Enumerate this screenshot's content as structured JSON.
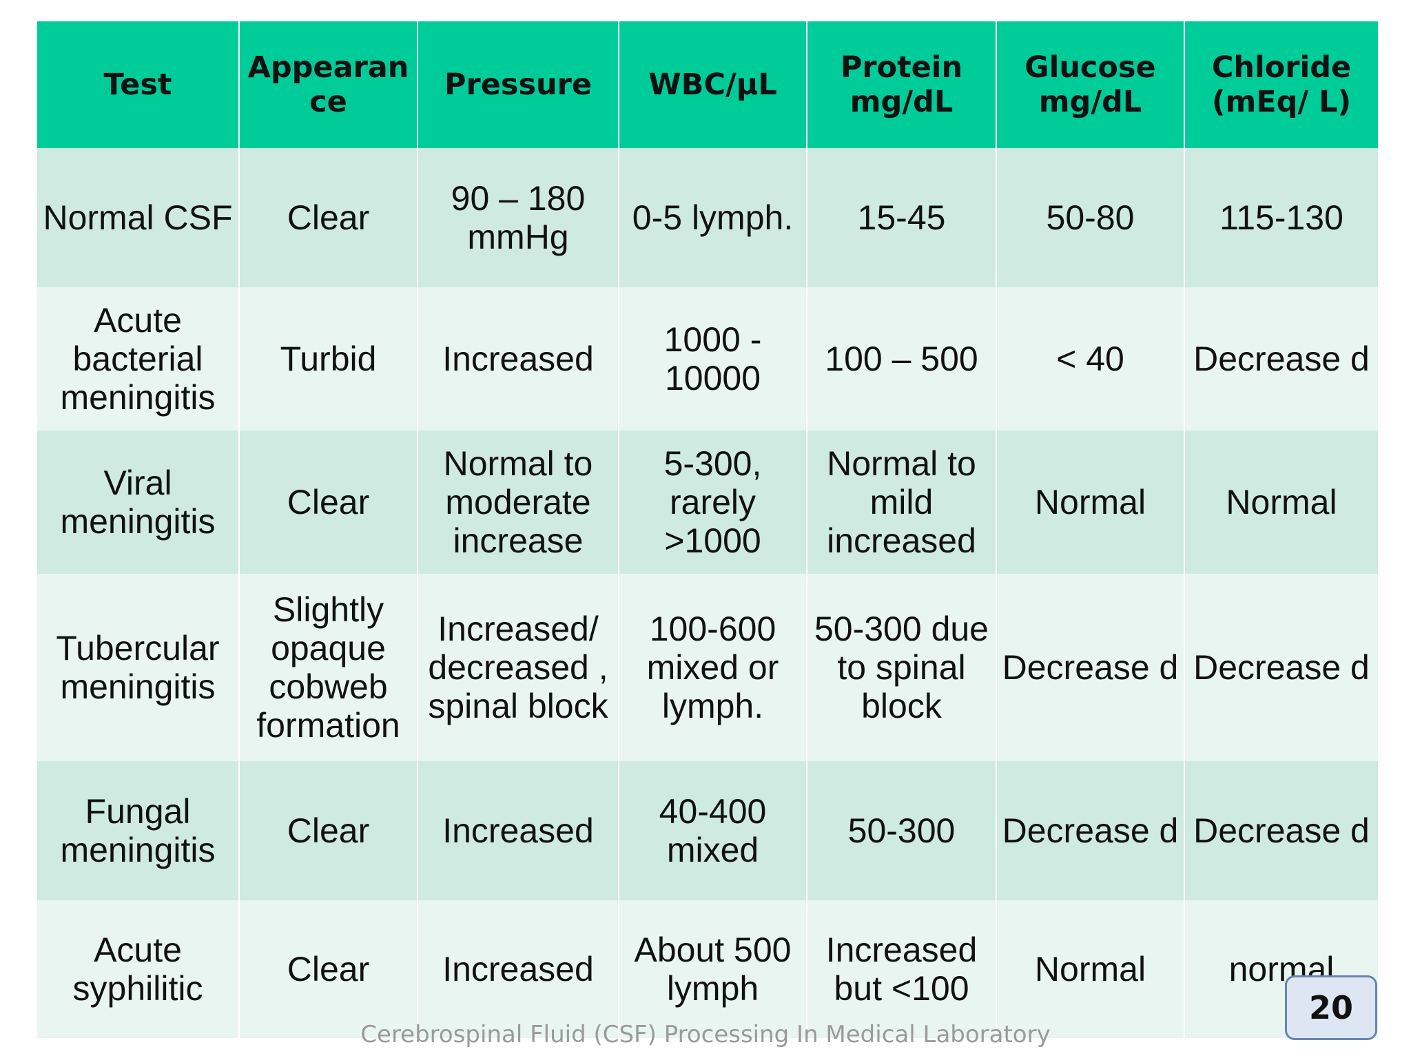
{
  "table": {
    "headers": [
      "Test",
      "Appearan ce",
      "Pressure",
      "WBC/μL",
      "Protein mg/dL",
      "Glucose mg/dL",
      "Chloride (mEq/ L)"
    ],
    "rows": [
      [
        "Normal CSF",
        "Clear",
        "90 – 180 mmHg",
        "0-5 lymph.",
        "15-45",
        "50-80",
        "115-130"
      ],
      [
        "Acute bacterial meningitis",
        "Turbid",
        "Increased",
        "1000 - 10000",
        "100 – 500",
        "< 40",
        "Decrease d"
      ],
      [
        "Viral meningitis",
        "Clear",
        "Normal to moderate increase",
        "5-300, rarely >1000",
        "Normal to mild increased",
        "Normal",
        "Normal"
      ],
      [
        "Tubercular meningitis",
        "Slightly opaque cobweb formation",
        "Increased/ decreased , spinal block",
        "100-600 mixed or lymph.",
        "50-300 due to spinal block",
        "Decrease d",
        "Decrease d"
      ],
      [
        "Fungal meningitis",
        "Clear",
        "Increased",
        "40-400 mixed",
        "50-300",
        "Decrease d",
        "Decrease d"
      ],
      [
        "Acute syphilitic",
        "Clear",
        "Increased",
        "About 500 lymph",
        "Increased but <100",
        "Normal",
        "normal"
      ]
    ]
  },
  "footer": "Cerebrospinal Fluid (CSF) Processing In Medical Laboratory",
  "page_number": "20",
  "colors": {
    "header_bg": "#00cc99",
    "row_dark": "#cfeae0",
    "row_light": "#e8f5f0",
    "page_badge_bg": "#dde6f2",
    "page_badge_border": "#6a84b0"
  }
}
